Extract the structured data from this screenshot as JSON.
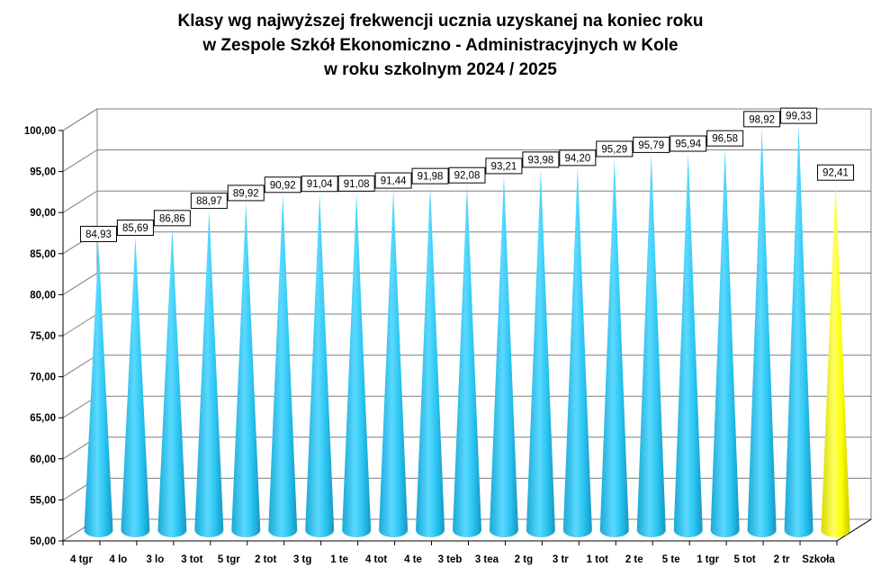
{
  "colors": {
    "series": "#29c4ef",
    "highlight": "#ffff00",
    "grid": "#7f7f7f",
    "wall": "#ffffff"
  },
  "chart_data": {
    "type": "bar",
    "style": "3d-cone",
    "title_lines": [
      "Klasy wg najwyższej frekwencji ucznia uzyskanej na koniec roku",
      "w Zespole Szkół Ekonomiczno - Administracyjnych w Kole",
      "w roku szkolnym 2024 / 2025"
    ],
    "categories": [
      "4 tgr",
      "4 lo",
      "3 lo",
      "3 tot",
      "5 tgr",
      "2 tot",
      "3 tg",
      "1 te",
      "4 tot",
      "4 te",
      "3 teb",
      "3 tea",
      "2 tg",
      "3 tr",
      "1 tot",
      "2 te",
      "5 te",
      "1 tgr",
      "5 tot",
      "2 tr",
      "Szkoła"
    ],
    "values": [
      84.93,
      85.69,
      86.86,
      88.97,
      89.92,
      90.92,
      91.04,
      91.08,
      91.44,
      91.98,
      92.08,
      93.21,
      93.98,
      94.2,
      95.29,
      95.79,
      95.94,
      96.58,
      98.92,
      99.33,
      92.41
    ],
    "value_labels": [
      "84,93",
      "85,69",
      "86,86",
      "88,97",
      "89,92",
      "90,92",
      "91,04",
      "91,08",
      "91,44",
      "91,98",
      "92,08",
      "93,21",
      "93,98",
      "94,20",
      "95,29",
      "95,79",
      "95,94",
      "96,58",
      "98,92",
      "99,33",
      "92,41"
    ],
    "highlight_category": "Szkoła",
    "ylim": [
      50,
      100
    ],
    "yticks": [
      "50,00",
      "55,00",
      "60,00",
      "65,00",
      "70,00",
      "75,00",
      "80,00",
      "85,00",
      "90,00",
      "95,00",
      "100,00"
    ],
    "grid": true,
    "legend": "none"
  }
}
